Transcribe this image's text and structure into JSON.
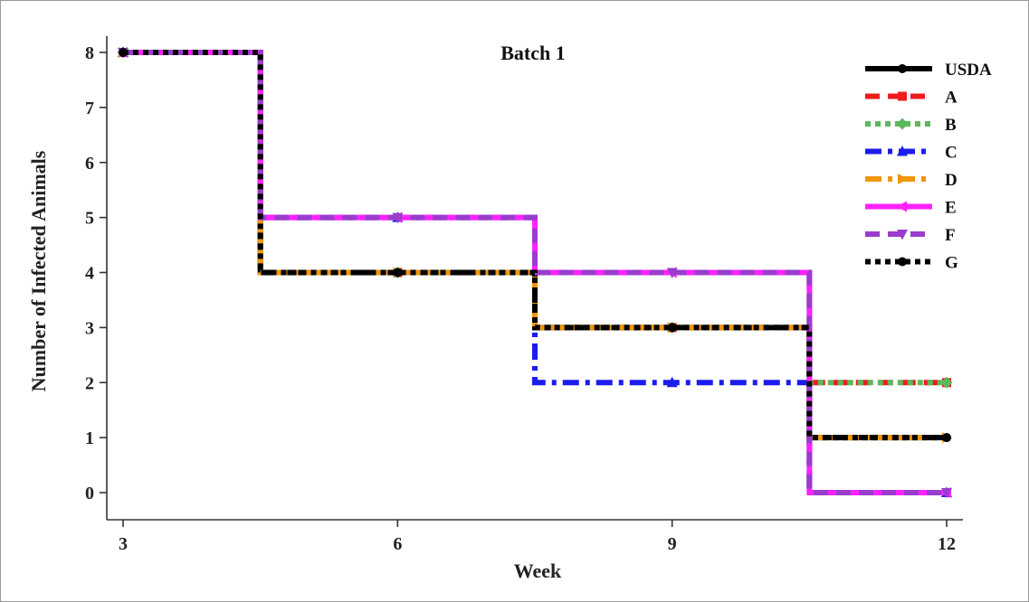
{
  "chart_data": {
    "type": "line",
    "step": "mid",
    "title": "Batch 1",
    "xlabel": "Week",
    "ylabel": "Number of Infected Animals",
    "xlim": [
      3,
      12
    ],
    "ylim": [
      0,
      8
    ],
    "xticks": [
      3,
      6,
      9,
      12
    ],
    "yticks": [
      0,
      1,
      2,
      3,
      4,
      5,
      6,
      7,
      8
    ],
    "grid": false,
    "legend_position": "top-right",
    "x": [
      3,
      6,
      9,
      12
    ],
    "series": [
      {
        "name": "USDA",
        "values": [
          8,
          4,
          3,
          1
        ],
        "color": "#000000",
        "dash": "solid",
        "marker": "circle"
      },
      {
        "name": "A",
        "values": [
          8,
          4,
          3,
          2
        ],
        "color": "#ee1c1c",
        "dash": "dashed",
        "marker": "square"
      },
      {
        "name": "B",
        "values": [
          8,
          4,
          3,
          2
        ],
        "color": "#5cb85c",
        "dash": "dotted",
        "marker": "diamond"
      },
      {
        "name": "C",
        "values": [
          8,
          5,
          2,
          0
        ],
        "color": "#1c1cee",
        "dash": "dashdot",
        "marker": "triangle-up"
      },
      {
        "name": "D",
        "values": [
          8,
          4,
          3,
          1
        ],
        "color": "#f0960a",
        "dash": "dashdot",
        "marker": "triangle-right"
      },
      {
        "name": "E",
        "values": [
          8,
          5,
          4,
          0
        ],
        "color": "#ff22ff",
        "dash": "solid",
        "marker": "triangle-left"
      },
      {
        "name": "F",
        "values": [
          8,
          5,
          4,
          0
        ],
        "color": "#9a3ccc",
        "dash": "dashed",
        "marker": "triangle-down"
      },
      {
        "name": "G",
        "values": [
          8,
          4,
          3,
          1
        ],
        "color": "#000000",
        "dash": "dotted",
        "marker": "circle"
      }
    ]
  }
}
